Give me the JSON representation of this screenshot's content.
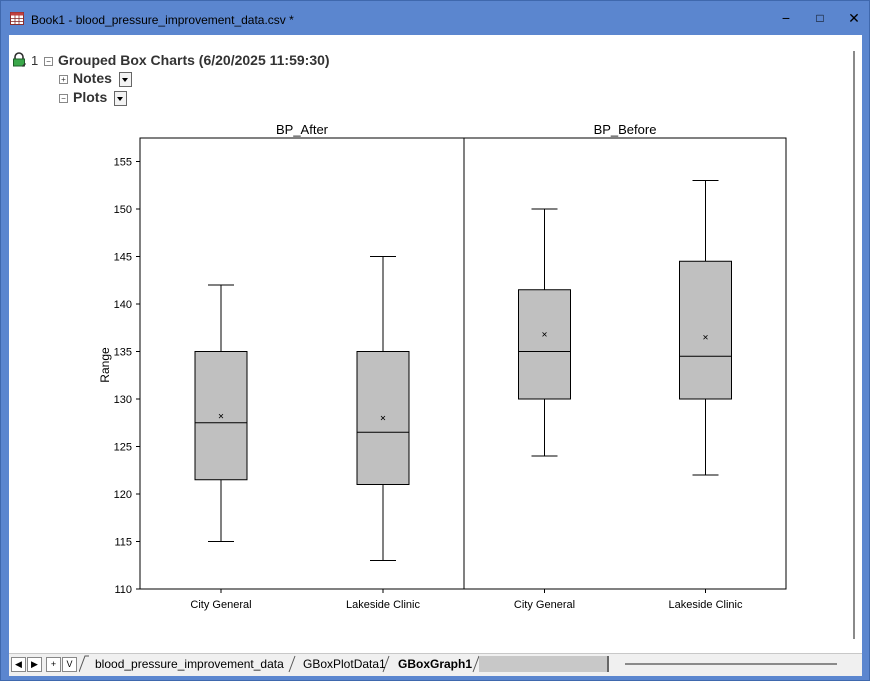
{
  "window": {
    "title": "Book1 - blood_pressure_improvement_data.csv *",
    "controls": {
      "minimize": "−",
      "maximize": "□",
      "close": "✕"
    }
  },
  "tree": {
    "index": "1",
    "root_label": "Grouped Box Charts (6/20/2025 11:59:30)",
    "children": [
      {
        "label": "Notes"
      },
      {
        "label": "Plots"
      }
    ]
  },
  "tabs": {
    "nav_buttons": [
      "◀",
      "▶",
      "+",
      "V"
    ],
    "sheets": [
      {
        "label": "blood_pressure_improvement_data",
        "active": false
      },
      {
        "label": "GBoxPlotData1",
        "active": false
      },
      {
        "label": "GBoxGraph1",
        "active": true
      }
    ]
  },
  "chart_data": {
    "type": "box",
    "ylabel": "Range",
    "ylim": [
      110,
      157
    ],
    "yticks": [
      110,
      115,
      120,
      125,
      130,
      135,
      140,
      145,
      150,
      155
    ],
    "box_color": "#c0c0c0",
    "panels": [
      {
        "title": "BP_After",
        "categories": [
          "City General",
          "Lakeside Clinic"
        ],
        "boxes": [
          {
            "min": 115,
            "q1": 121.5,
            "median": 127.5,
            "q3": 135,
            "max": 142,
            "mean": 128.2
          },
          {
            "min": 113,
            "q1": 121,
            "median": 126.5,
            "q3": 135,
            "max": 145,
            "mean": 128
          }
        ]
      },
      {
        "title": "BP_Before",
        "categories": [
          "City General",
          "Lakeside Clinic"
        ],
        "boxes": [
          {
            "min": 124,
            "q1": 130,
            "median": 135,
            "q3": 141.5,
            "max": 150,
            "mean": 136.8
          },
          {
            "min": 122,
            "q1": 130,
            "median": 134.5,
            "q3": 144.5,
            "max": 153,
            "mean": 136.5
          }
        ]
      }
    ]
  }
}
